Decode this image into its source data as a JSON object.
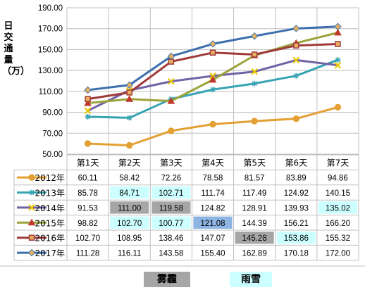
{
  "chart_data": {
    "type": "line",
    "ylabel": "日交通量（万）",
    "ylim": [
      50,
      190
    ],
    "yticks": [
      "50.00",
      "70.00",
      "90.00",
      "110.00",
      "130.00",
      "150.00",
      "170.00",
      "190.00"
    ],
    "categories": [
      "第1天",
      "第2天",
      "第3天",
      "第4天",
      "第5天",
      "第6天",
      "第7天"
    ],
    "grid": true,
    "legend": "table-left",
    "series": [
      {
        "name": "2012年",
        "color": "#E3A033",
        "marker": "circle",
        "values": [
          60.11,
          58.42,
          72.26,
          78.58,
          81.57,
          83.89,
          94.86
        ],
        "labels": [
          "60.11",
          "58.42",
          "72.26",
          "78.58",
          "81.57",
          "83.89",
          "94.86"
        ],
        "highlights": [
          "",
          "",
          "",
          "",
          "",
          "",
          ""
        ]
      },
      {
        "name": "2013年",
        "color": "#37A4B3",
        "marker": "star",
        "values": [
          85.78,
          84.71,
          102.71,
          111.74,
          117.49,
          124.92,
          140.15
        ],
        "labels": [
          "85.78",
          "84.71",
          "102.71",
          "111.74",
          "117.49",
          "124.92",
          "140.15"
        ],
        "highlights": [
          "",
          "snow",
          "snow",
          "",
          "",
          "",
          ""
        ]
      },
      {
        "name": "2014年",
        "color": "#7162A3",
        "marker": "x",
        "values": [
          91.53,
          111.0,
          119.58,
          124.82,
          128.91,
          139.93,
          135.02
        ],
        "labels": [
          "91.53",
          "111.00",
          "119.58",
          "124.82",
          "128.91",
          "139.93",
          "135.02"
        ],
        "highlights": [
          "",
          "haze",
          "haze",
          "",
          "",
          "",
          "snow"
        ]
      },
      {
        "name": "2015年",
        "color": "#9BA33A",
        "marker": "triangle",
        "values": [
          98.82,
          102.7,
          100.77,
          121.08,
          144.39,
          156.21,
          166.2
        ],
        "labels": [
          "98.82",
          "102.70",
          "100.77",
          "121.08",
          "144.39",
          "156.21",
          "166.20"
        ],
        "highlights": [
          "",
          "snow",
          "snow",
          "blue",
          "",
          "",
          ""
        ]
      },
      {
        "name": "2016年",
        "color": "#A03A3A",
        "marker": "square",
        "values": [
          102.7,
          108.95,
          138.46,
          147.07,
          145.28,
          153.86,
          155.32
        ],
        "labels": [
          "102.70",
          "108.95",
          "138.46",
          "147.07",
          "145.28",
          "153.86",
          "155.32"
        ],
        "highlights": [
          "",
          "",
          "",
          "",
          "haze",
          "snow",
          ""
        ]
      },
      {
        "name": "2017年",
        "color": "#3C6FAD",
        "marker": "diamond",
        "values": [
          111.28,
          116.11,
          143.58,
          155.4,
          162.89,
          170.18,
          172.0
        ],
        "labels": [
          "111.28",
          "116.11",
          "143.58",
          "155.40",
          "162.89",
          "170.18",
          "172.00"
        ],
        "highlights": [
          "",
          "",
          "",
          "",
          "",
          "",
          ""
        ]
      }
    ],
    "highlight_colors": {
      "haze": "#A6A6A6",
      "snow": "#CCFFFF",
      "blue": "#8DB4E2"
    },
    "legend_items": [
      {
        "key": "haze",
        "label": "雾霾",
        "color": "#A6A6A6"
      },
      {
        "key": "snow",
        "label": "雨雪",
        "color": "#CCFFFF"
      }
    ]
  }
}
